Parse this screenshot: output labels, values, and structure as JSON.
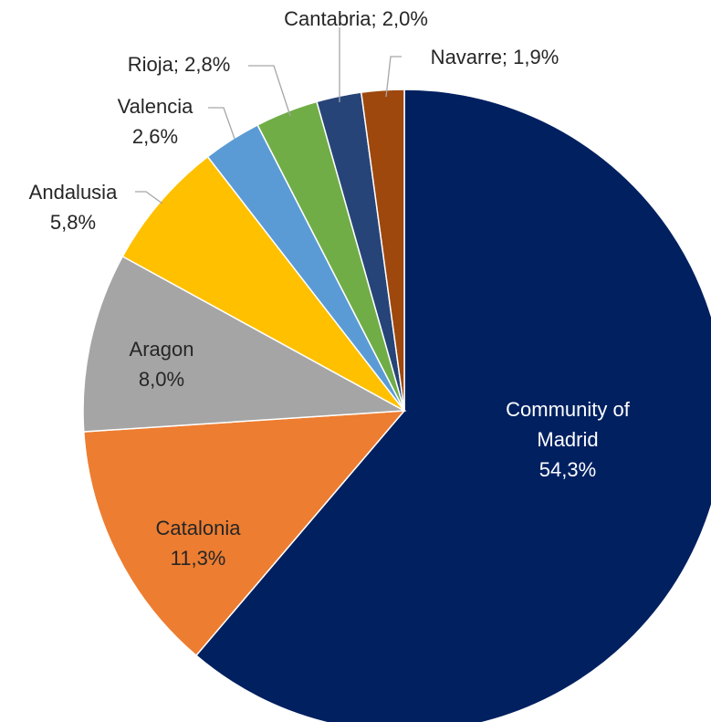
{
  "chart_data": {
    "type": "pie",
    "categories": [
      "Community of Madrid",
      "Catalonia",
      "Aragon",
      "Andalusia",
      "Valencia",
      "Rioja",
      "Cantabria",
      "Navarre"
    ],
    "values": [
      54.3,
      11.3,
      8.0,
      5.8,
      2.6,
      2.8,
      2.0,
      1.9
    ],
    "value_labels": [
      "54,3%",
      "11,3%",
      "8,0%",
      "5,8%",
      "2,6%",
      "2,8%",
      "2,0%",
      "1,9%"
    ],
    "colors": [
      "#002060",
      "#ED7D31",
      "#A5A5A5",
      "#FFC000",
      "#5B9BD5",
      "#70AD47",
      "#264478",
      "#9E480E"
    ]
  }
}
